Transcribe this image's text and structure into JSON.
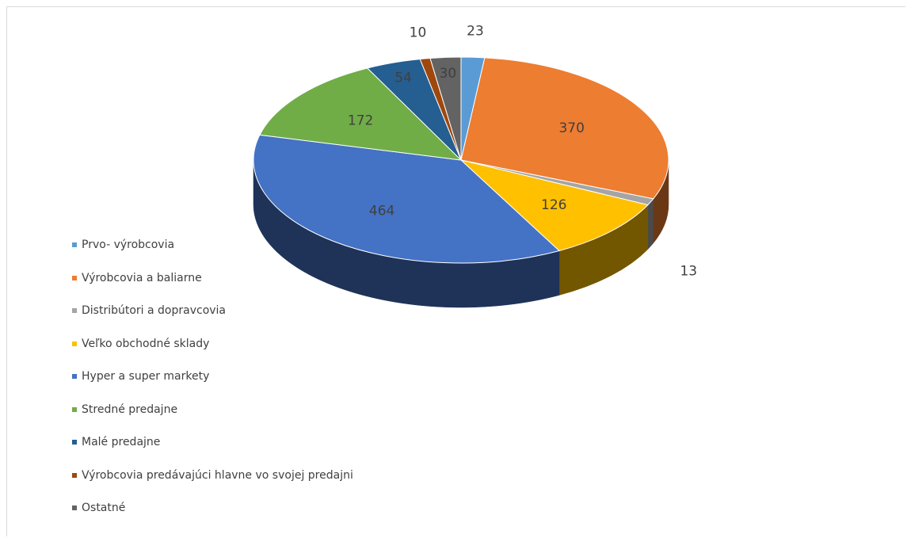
{
  "chart_data": {
    "type": "pie",
    "title": "",
    "style": "3d",
    "legend_position": "left",
    "slices": [
      {
        "label": "Prvo- výrobcovia",
        "value": 23,
        "color": "#5B9BD5"
      },
      {
        "label": "Výrobcovia a baliarne",
        "value": 370,
        "color": "#ED7D31"
      },
      {
        "label": "Distribútori a dopravcovia",
        "value": 13,
        "color": "#A5A5A5"
      },
      {
        "label": "Veľko obchodné sklady",
        "value": 126,
        "color": "#FFC000"
      },
      {
        "label": "Hyper a super markety",
        "value": 464,
        "color": "#4472C4"
      },
      {
        "label": "Stredné predajne",
        "value": 172,
        "color": "#70AD47"
      },
      {
        "label": "Malé  predajne",
        "value": 54,
        "color": "#255E91"
      },
      {
        "label": "Výrobcovia predávajúci hlavne vo svojej predajni",
        "value": 10,
        "color": "#9E480E"
      },
      {
        "label": "Ostatné",
        "value": 30,
        "color": "#636363"
      }
    ]
  }
}
